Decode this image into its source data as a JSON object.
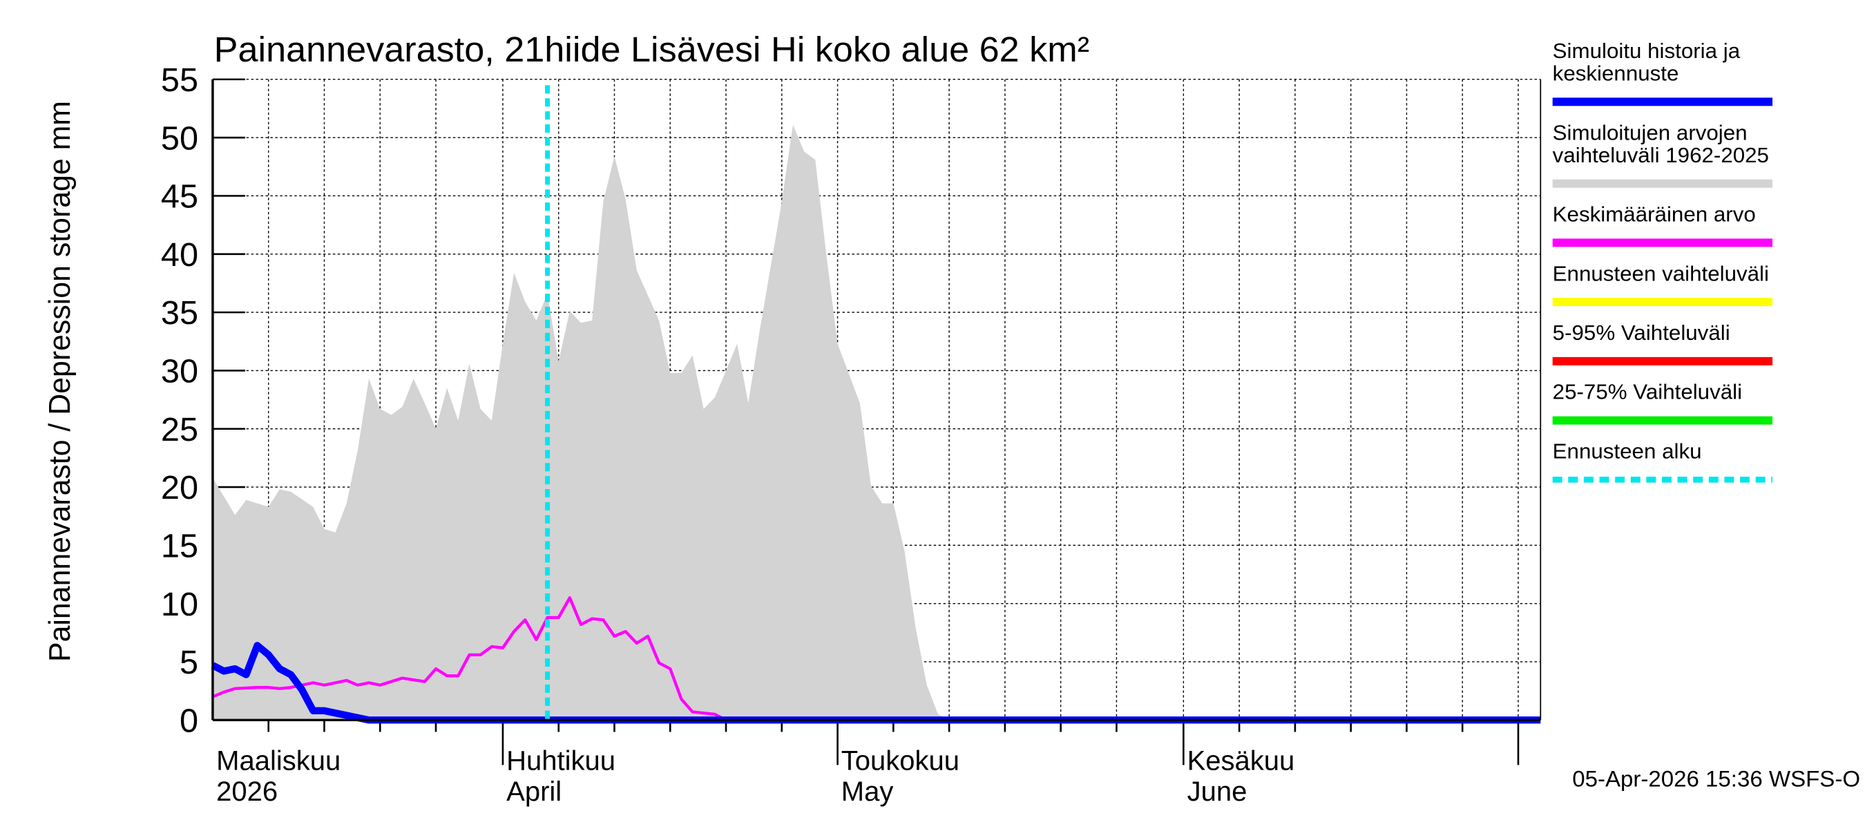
{
  "chart_data": {
    "type": "line",
    "title": "Painannevarasto, 21hiide Lisävesi Hi koko alue 62 km²",
    "y_label": "Painannevarasto / Depression storage    mm",
    "footer": "05-Apr-2026 15:36 WSFS-O",
    "xlim": [
      65,
      184
    ],
    "ylim": [
      0,
      55
    ],
    "yticks": [
      0,
      5,
      10,
      15,
      20,
      25,
      30,
      35,
      40,
      45,
      50,
      55
    ],
    "xticks": [
      {
        "value": 60,
        "label": "Maaliskuu\n2026"
      },
      {
        "value": 91,
        "label": "Huhtikuu\nApril"
      },
      {
        "value": 121,
        "label": "Toukokuu\nMay"
      },
      {
        "value": 152,
        "label": "Kesäkuu\nJune"
      },
      {
        "value": 182,
        "label": null
      }
    ],
    "minor_xticks": [
      70,
      75,
      80,
      85,
      96,
      101,
      106,
      111,
      116,
      126,
      131,
      136,
      141,
      146,
      157,
      162,
      167,
      172,
      177
    ],
    "grid": true,
    "series": [
      {
        "name": "Simuloitu historia ja\nkeskiennuste",
        "color": "#0000ff",
        "style": "thick",
        "x": [
          65,
          66,
          67,
          68,
          69,
          70,
          71,
          72,
          73,
          74,
          75,
          76,
          78,
          79,
          184
        ],
        "values": [
          4.7,
          4.2,
          4.4,
          3.9,
          6.4,
          5.6,
          4.4,
          3.9,
          2.6,
          0.8,
          0.8,
          0.6,
          0.2,
          0,
          0
        ]
      },
      {
        "name": "Simuloitujen arvojen\nvaihteluväli 1962-2025",
        "color": "#d3d3d3",
        "style": "area",
        "x": [
          65,
          67,
          68,
          70,
          71,
          72,
          74,
          75,
          76,
          77,
          78,
          79,
          80,
          81,
          82,
          83,
          84,
          85,
          86,
          87,
          88,
          89,
          90,
          91,
          92,
          93,
          94,
          95,
          96,
          97,
          98,
          99,
          100,
          101,
          102,
          103,
          105,
          106,
          107,
          108,
          109,
          110,
          112,
          113,
          114,
          116,
          117,
          118,
          119,
          120,
          121,
          123,
          124,
          125,
          126,
          127,
          128,
          129,
          130,
          131,
          184
        ],
        "values": [
          20.8,
          17.6,
          18.9,
          18.3,
          19.8,
          19.6,
          18.3,
          16.4,
          16.1,
          18.6,
          23.2,
          29.3,
          26.7,
          26.2,
          26.9,
          29.3,
          27.2,
          25,
          28.5,
          25.7,
          30.6,
          26.7,
          25.7,
          32.3,
          38.4,
          35.9,
          34.3,
          36.6,
          30.8,
          35.1,
          34.1,
          34.3,
          44.5,
          48.4,
          44.7,
          38.6,
          34.3,
          29.8,
          29.8,
          31.3,
          26.7,
          27.7,
          32.3,
          27.2,
          33.3,
          44.5,
          51.1,
          48.8,
          48.1,
          39.9,
          32.3,
          27.2,
          20.1,
          18.6,
          18.6,
          14.5,
          7.9,
          3.0,
          0.5,
          0,
          0
        ]
      },
      {
        "name": "Keskimääräinen arvo",
        "color": "#ff00ff",
        "style": "thin",
        "x": [
          65,
          66,
          67,
          69,
          70,
          71,
          72,
          74,
          75,
          77,
          78,
          79,
          80,
          82,
          84,
          85,
          86,
          87,
          88,
          89,
          90,
          91,
          92,
          93,
          94,
          95,
          96,
          97,
          98,
          99,
          100,
          101,
          102,
          103,
          104,
          105,
          106,
          107,
          108,
          110,
          111,
          184
        ],
        "values": [
          2.0,
          2.4,
          2.7,
          2.8,
          2.8,
          2.7,
          2.8,
          3.2,
          3.0,
          3.4,
          3.0,
          3.2,
          3.0,
          3.6,
          3.3,
          4.4,
          3.8,
          3.8,
          5.6,
          5.6,
          6.3,
          6.2,
          7.6,
          8.6,
          6.9,
          8.8,
          8.8,
          10.5,
          8.2,
          8.7,
          8.6,
          7.2,
          7.6,
          6.6,
          7.2,
          4.9,
          4.4,
          1.8,
          0.7,
          0.5,
          0,
          0
        ]
      },
      {
        "name": "Ennusteen vaihteluväli",
        "color": "#ffff00",
        "style": "legend",
        "x": [],
        "values": []
      },
      {
        "name": "5-95% Vaihteluväli",
        "color": "#ff0000",
        "style": "legend",
        "x": [],
        "values": []
      },
      {
        "name": "25-75% Vaihteluväli",
        "color": "#00ee00",
        "style": "legend",
        "x": [],
        "values": []
      }
    ],
    "forecast_start": {
      "name": "Ennusteen alku",
      "color": "#00e5ee",
      "x": 95
    }
  }
}
